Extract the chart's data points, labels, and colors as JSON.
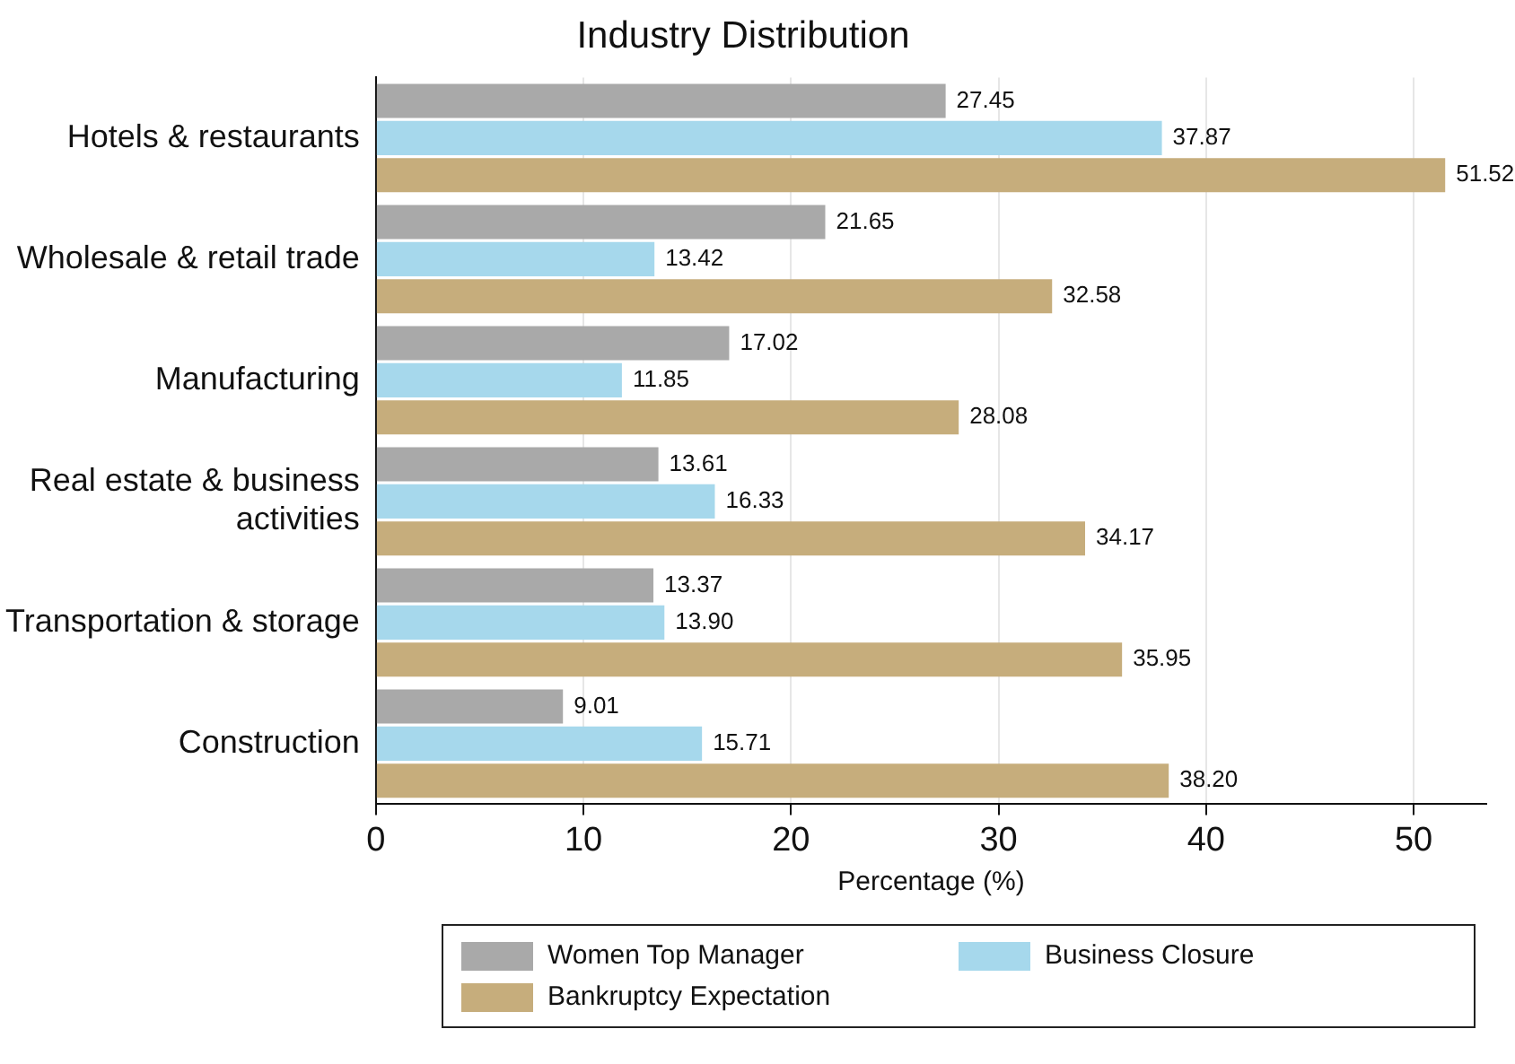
{
  "chart_data": {
    "type": "bar",
    "orientation": "horizontal",
    "title": "Industry Distribution",
    "xlabel": "Percentage (%)",
    "categories": [
      "Hotels & restaurants",
      "Wholesale & retail trade",
      "Manufacturing",
      "Real estate & business activities",
      "Transportation & storage",
      "Construction"
    ],
    "series": [
      {
        "name": "Women Top Manager",
        "color": "#a9a9a9",
        "values": [
          27.45,
          21.65,
          17.02,
          13.61,
          13.37,
          9.01
        ],
        "value_labels": [
          "27.45",
          "21.65",
          "17.02",
          "13.61",
          "13.37",
          "9.01"
        ]
      },
      {
        "name": "Business Closure",
        "color": "#a6d8ec",
        "values": [
          37.87,
          13.42,
          11.85,
          16.33,
          13.9,
          15.71
        ],
        "value_labels": [
          "37.87",
          "13.42",
          "11.85",
          "16.33",
          "13.90",
          "15.71"
        ]
      },
      {
        "name": "Bankruptcy Expectation",
        "color": "#c6ad7c",
        "values": [
          51.52,
          32.58,
          28.08,
          34.17,
          35.95,
          38.2
        ],
        "value_labels": [
          "51.52",
          "32.58",
          "28.08",
          "34.17",
          "35.95",
          "38.20"
        ]
      }
    ],
    "xlim": [
      0,
      53.5
    ],
    "xticks": [
      0,
      10,
      20,
      30,
      40,
      50
    ],
    "grid": "x",
    "legend": "bottom"
  }
}
